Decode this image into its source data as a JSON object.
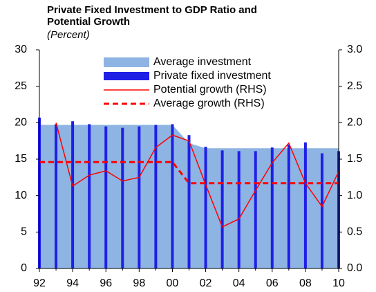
{
  "chart_data": {
    "type": "bar-line",
    "title": "Private Fixed Investment to GDP Ratio and Potential Growth",
    "subtitle": "(Percent)",
    "categories": [
      "92",
      null,
      "94",
      null,
      "96",
      null,
      "98",
      null,
      "00",
      null,
      "02",
      null,
      "04",
      null,
      "06",
      null,
      "08",
      null,
      "10"
    ],
    "series": [
      {
        "name": "Average investment",
        "kind": "area",
        "color": "#8db4e2",
        "values": [
          19.7,
          19.7,
          19.7,
          19.7,
          19.7,
          19.7,
          19.7,
          19.7,
          19.7,
          17.2,
          16.5,
          16.5,
          16.5,
          16.5,
          16.5,
          16.5,
          16.5,
          16.5,
          16.5
        ]
      },
      {
        "name": "Private fixed investment",
        "kind": "bar",
        "color": "#1f1fe6",
        "values": [
          20.7,
          19.8,
          20.2,
          19.8,
          19.5,
          19.3,
          19.5,
          19.7,
          19.8,
          18.3,
          16.7,
          16.2,
          16.1,
          16.1,
          16.6,
          17.0,
          17.3,
          15.8,
          16.1
        ]
      },
      {
        "name": "Potential growth (RHS)",
        "kind": "line",
        "axis": "y2",
        "color": "#ff0000",
        "values": [
          null,
          2.0,
          1.13,
          1.28,
          1.34,
          1.2,
          1.25,
          1.66,
          1.83,
          1.75,
          1.15,
          0.57,
          0.68,
          1.07,
          1.45,
          1.72,
          1.17,
          0.85,
          1.33
        ]
      },
      {
        "name": "Average growth (RHS)",
        "kind": "dashed",
        "axis": "y2",
        "color": "#ff0000",
        "values": [
          1.46,
          1.46,
          1.46,
          1.46,
          1.46,
          1.46,
          1.46,
          1.46,
          1.46,
          1.17,
          1.17,
          1.17,
          1.17,
          1.17,
          1.17,
          1.17,
          1.17,
          1.17,
          1.17
        ]
      }
    ],
    "ylim": [
      0,
      30
    ],
    "yticks": [
      0,
      5,
      10,
      15,
      20,
      25,
      30
    ],
    "y2lim": [
      0,
      3
    ],
    "y2ticks": [
      {
        "value": 0,
        "label": "0.0"
      },
      {
        "value": 0.5,
        "label": "0.5"
      },
      {
        "value": 1,
        "label": "1.0"
      },
      {
        "value": 1.5,
        "label": "1.5"
      },
      {
        "value": 2,
        "label": "2.0"
      },
      {
        "value": 2.5,
        "label": "2.5"
      },
      {
        "value": 3,
        "label": "3.0"
      }
    ],
    "legend": "top"
  }
}
